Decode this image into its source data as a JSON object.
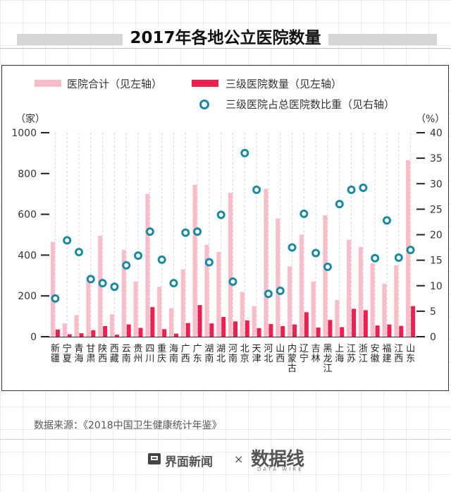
{
  "title": "2017年各地公立医院数量",
  "legend": {
    "total": "医院合计（见左轴）",
    "tier3": "三级医院数量（见左轴）",
    "share": "三级医院占总医院数比重（见右轴）"
  },
  "units": {
    "left": "（家）",
    "right": "（%）"
  },
  "source": "数据来源：《2018中国卫生健康统计年鉴》",
  "footer": {
    "brand": "界面新闻",
    "separator": "×",
    "partner": "数据线",
    "partner_sub": "DATA WIRE"
  },
  "colors": {
    "total": "#f9bdc9",
    "tier3": "#ee1f4f",
    "share": "#1b8aa0",
    "grid": "#d4d4d4"
  },
  "chart_data": {
    "type": "bar",
    "title": "2017年各地公立医院数量",
    "categories": [
      "新疆",
      "宁夏",
      "青海",
      "甘肃",
      "陕西",
      "西藏",
      "云南",
      "贵州",
      "四川",
      "重庆",
      "海南",
      "广西",
      "广东",
      "湖南",
      "湖北",
      "河南",
      "北京",
      "天津",
      "河北",
      "山西",
      "内蒙古",
      "辽宁",
      "吉林",
      "黑龙江",
      "上海",
      "江苏",
      "浙江",
      "安徽",
      "福建",
      "江西",
      "山东"
    ],
    "left_axis": {
      "unit": "（家）",
      "ylim": [
        0,
        1000
      ],
      "ticks": [
        0,
        200,
        400,
        600,
        800,
        1000
      ]
    },
    "right_axis": {
      "unit": "（%）",
      "ylim": [
        0,
        40
      ],
      "ticks": [
        0,
        5,
        10,
        15,
        20,
        25,
        30,
        35,
        40
      ]
    },
    "series": [
      {
        "name": "医院合计（见左轴）",
        "type": "bar",
        "axis": "left",
        "values": [
          465,
          65,
          105,
          290,
          495,
          110,
          425,
          270,
          700,
          245,
          140,
          330,
          745,
          450,
          415,
          705,
          220,
          150,
          725,
          580,
          345,
          500,
          270,
          595,
          180,
          475,
          440,
          360,
          260,
          350,
          865
        ]
      },
      {
        "name": "三级医院数量（见左轴）",
        "type": "bar",
        "axis": "left",
        "values": [
          35,
          12,
          17,
          32,
          52,
          10,
          60,
          43,
          145,
          37,
          15,
          67,
          155,
          65,
          97,
          75,
          80,
          42,
          62,
          52,
          60,
          120,
          45,
          82,
          47,
          137,
          130,
          55,
          60,
          53,
          150
        ]
      },
      {
        "name": "三级医院占总医院数比重（见右轴）",
        "type": "scatter",
        "axis": "right",
        "values": [
          7.5,
          18.9,
          16.6,
          11.3,
          10.5,
          9.8,
          14.0,
          15.9,
          20.6,
          15.1,
          10.5,
          20.4,
          20.6,
          14.6,
          23.9,
          10.8,
          36.0,
          28.8,
          8.4,
          9.0,
          17.5,
          24.1,
          16.4,
          13.7,
          26.0,
          28.8,
          29.2,
          15.4,
          22.8,
          15.5,
          17.0
        ]
      }
    ]
  }
}
